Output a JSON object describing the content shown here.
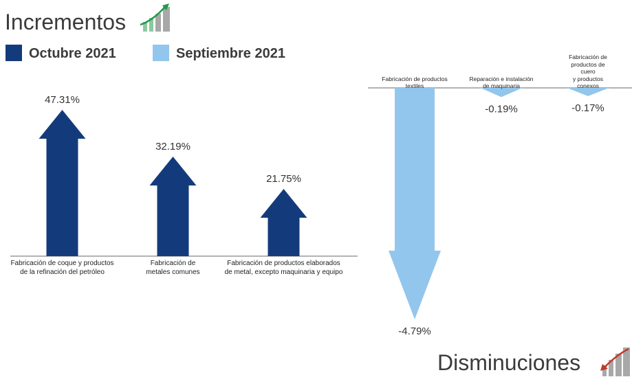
{
  "chart_data": [
    {
      "type": "arrow",
      "title": "Incrementos",
      "categories": [
        "Fabricación de coque  y productos\nde la refinación del petróleo",
        "Fabricación de\nmetales comunes",
        "Fabricación de productos  elaborados\nde metal, excepto maquinaria y equipo"
      ],
      "series": [
        {
          "name": "Octubre 2021",
          "color": "#133b7c",
          "values": [
            47.31,
            32.19,
            21.75
          ],
          "value_labels": [
            "47.31%",
            "32.19%",
            "21.75%"
          ]
        }
      ]
    },
    {
      "type": "arrow",
      "title": "Disminuciones",
      "categories": [
        "Fabricación de productos\ntextiles",
        "Reparación e instalación\nde maquinaria",
        "Fabricación de productos de cuero\ny productos conexos"
      ],
      "series": [
        {
          "name": "Septiembre 2021",
          "color": "#93c6ec",
          "values": [
            -4.79,
            -0.19,
            -0.17
          ],
          "value_labels": [
            "-4.79%",
            "-0.19%",
            "-0.17%"
          ]
        }
      ]
    }
  ]
}
